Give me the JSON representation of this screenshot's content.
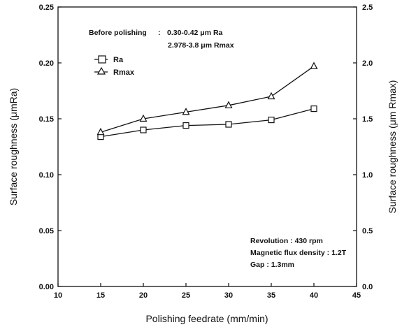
{
  "chart_data": {
    "type": "line",
    "title": "",
    "xlabel": "Polishing feedrate (mm/min)",
    "ylabel_left": "Surface roughness (μmRa)",
    "ylabel_right": "Surface roughness (μm Rmax)",
    "xlim": [
      10,
      45
    ],
    "ylim_left": [
      0.0,
      0.25
    ],
    "ylim_right": [
      0.0,
      2.5
    ],
    "x_ticks": [
      "10",
      "15",
      "20",
      "25",
      "30",
      "35",
      "40",
      "45"
    ],
    "y_left_ticks": [
      "0.00",
      "0.05",
      "0.10",
      "0.15",
      "0.20",
      "0.25"
    ],
    "y_right_ticks": [
      "0.0",
      "0.5",
      "1.0",
      "1.5",
      "2.0",
      "2.5"
    ],
    "grid": false,
    "legend_position": "top-left",
    "series": [
      {
        "name": "Ra",
        "axis": "left",
        "marker": "square",
        "x": [
          15,
          20,
          25,
          30,
          35,
          40
        ],
        "values": [
          0.134,
          0.14,
          0.144,
          0.145,
          0.149,
          0.159
        ]
      },
      {
        "name": "Rmax",
        "axis": "right",
        "marker": "triangle",
        "x": [
          15,
          20,
          25,
          30,
          35,
          40
        ],
        "values": [
          1.38,
          1.5,
          1.56,
          1.62,
          1.7,
          1.97
        ]
      }
    ],
    "annotations": {
      "before_label": "Before polishing",
      "before_sep": ":",
      "before_ra": "0.30-0.42 μm Ra",
      "before_rmax": "2.978-3.8 μm Rmax",
      "conditions": [
        "Revolution : 430 rpm",
        "Magnetic flux density : 1.2T",
        "Gap : 1.3mm"
      ]
    }
  },
  "colors": {
    "ink": "#111111",
    "background": "#ffffff"
  }
}
